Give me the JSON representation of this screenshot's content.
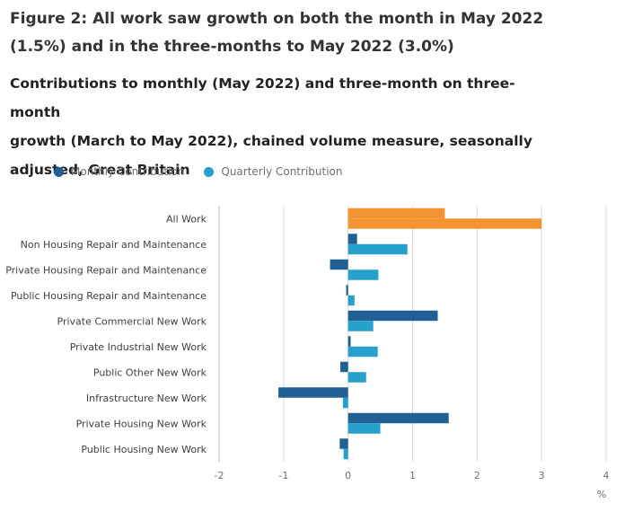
{
  "header": {
    "title_line1": "Figure 2: All work saw growth on both the month in May 2022",
    "title_line2": "(1.5%) and in the three-months to May 2022 (3.0%)",
    "subtitle_line1": "Contributions to monthly (May 2022) and three-month on three-month",
    "subtitle_line2": "growth (March to May 2022), chained volume measure, seasonally",
    "subtitle_line3": "adjusted, Great Britain"
  },
  "legend": {
    "monthly_label": "Monthly Contribution",
    "quarterly_label": "Quarterly Contribution"
  },
  "colors": {
    "monthly": "#206095",
    "quarterly": "#27a0cc",
    "highlight": "#f39431",
    "grid": "#d9d9d9",
    "axis": "#bebebe"
  },
  "chart_data": {
    "type": "bar",
    "orientation": "horizontal",
    "title": "Figure 2: All work saw growth on both the month in May 2022 (1.5%) and in the three-months to May 2022 (3.0%)",
    "subtitle": "Contributions to monthly (May 2022) and three-month on three-month growth (March to May 2022), chained volume measure, seasonally adjusted, Great Britain",
    "categories": [
      "All Work",
      "Non Housing Repair and Maintenance",
      "Private Housing Repair and Maintenance",
      "Public Housing Repair and Maintenance",
      "Private Commercial New Work",
      "Private Industrial New Work",
      "Public Other New Work",
      "Infrastructure New Work",
      "Private Housing New Work",
      "Public Housing New Work"
    ],
    "series": [
      {
        "name": "Monthly Contribution",
        "values": [
          1.5,
          0.14,
          -0.28,
          -0.03,
          1.39,
          0.04,
          -0.12,
          -1.08,
          1.56,
          -0.13
        ]
      },
      {
        "name": "Quarterly Contribution",
        "values": [
          3.0,
          0.92,
          0.47,
          0.1,
          0.39,
          0.46,
          0.28,
          -0.08,
          0.5,
          -0.07
        ]
      }
    ],
    "highlight_category": "All Work",
    "xlim": [
      -2,
      4
    ],
    "xticks": [
      -2,
      -1,
      0,
      1,
      2,
      3,
      4
    ],
    "xlabel": "%",
    "ylabel": "",
    "grid": true,
    "legend_position": "top-left"
  }
}
